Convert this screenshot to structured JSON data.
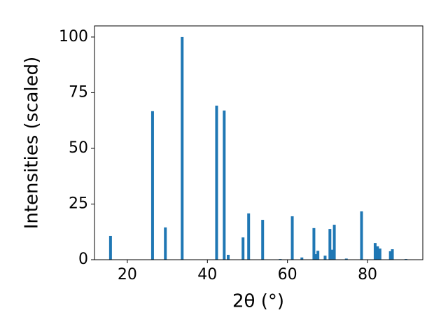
{
  "chart_data": {
    "type": "bar",
    "xlabel": "2θ (°)",
    "ylabel": "Intensities (scaled)",
    "color": "#1f77b4",
    "x": [
      15.8,
      26.3,
      29.5,
      33.7,
      42.3,
      44.2,
      45.2,
      48.9,
      50.3,
      53.8,
      58.2,
      61.2,
      63.6,
      66.6,
      67.1,
      67.6,
      69.4,
      70.6,
      71.1,
      71.7,
      74.7,
      78.5,
      81.9,
      82.5,
      83.1,
      85.7,
      86.2,
      89.6
    ],
    "values": [
      10.7,
      66.7,
      14.5,
      100,
      69.2,
      67,
      2.2,
      10,
      20.8,
      17.9,
      0.3,
      19.5,
      1,
      14.2,
      2.5,
      4,
      1.8,
      13.8,
      4.5,
      15.7,
      0.5,
      21.7,
      7.5,
      6,
      5,
      3.8,
      4.7,
      0.3
    ],
    "xlim": [
      11.8,
      93.8
    ],
    "ylim": [
      0,
      105
    ],
    "xticks": [
      20,
      40,
      60,
      80
    ],
    "yticks": [
      0,
      25,
      50,
      75,
      100
    ]
  }
}
